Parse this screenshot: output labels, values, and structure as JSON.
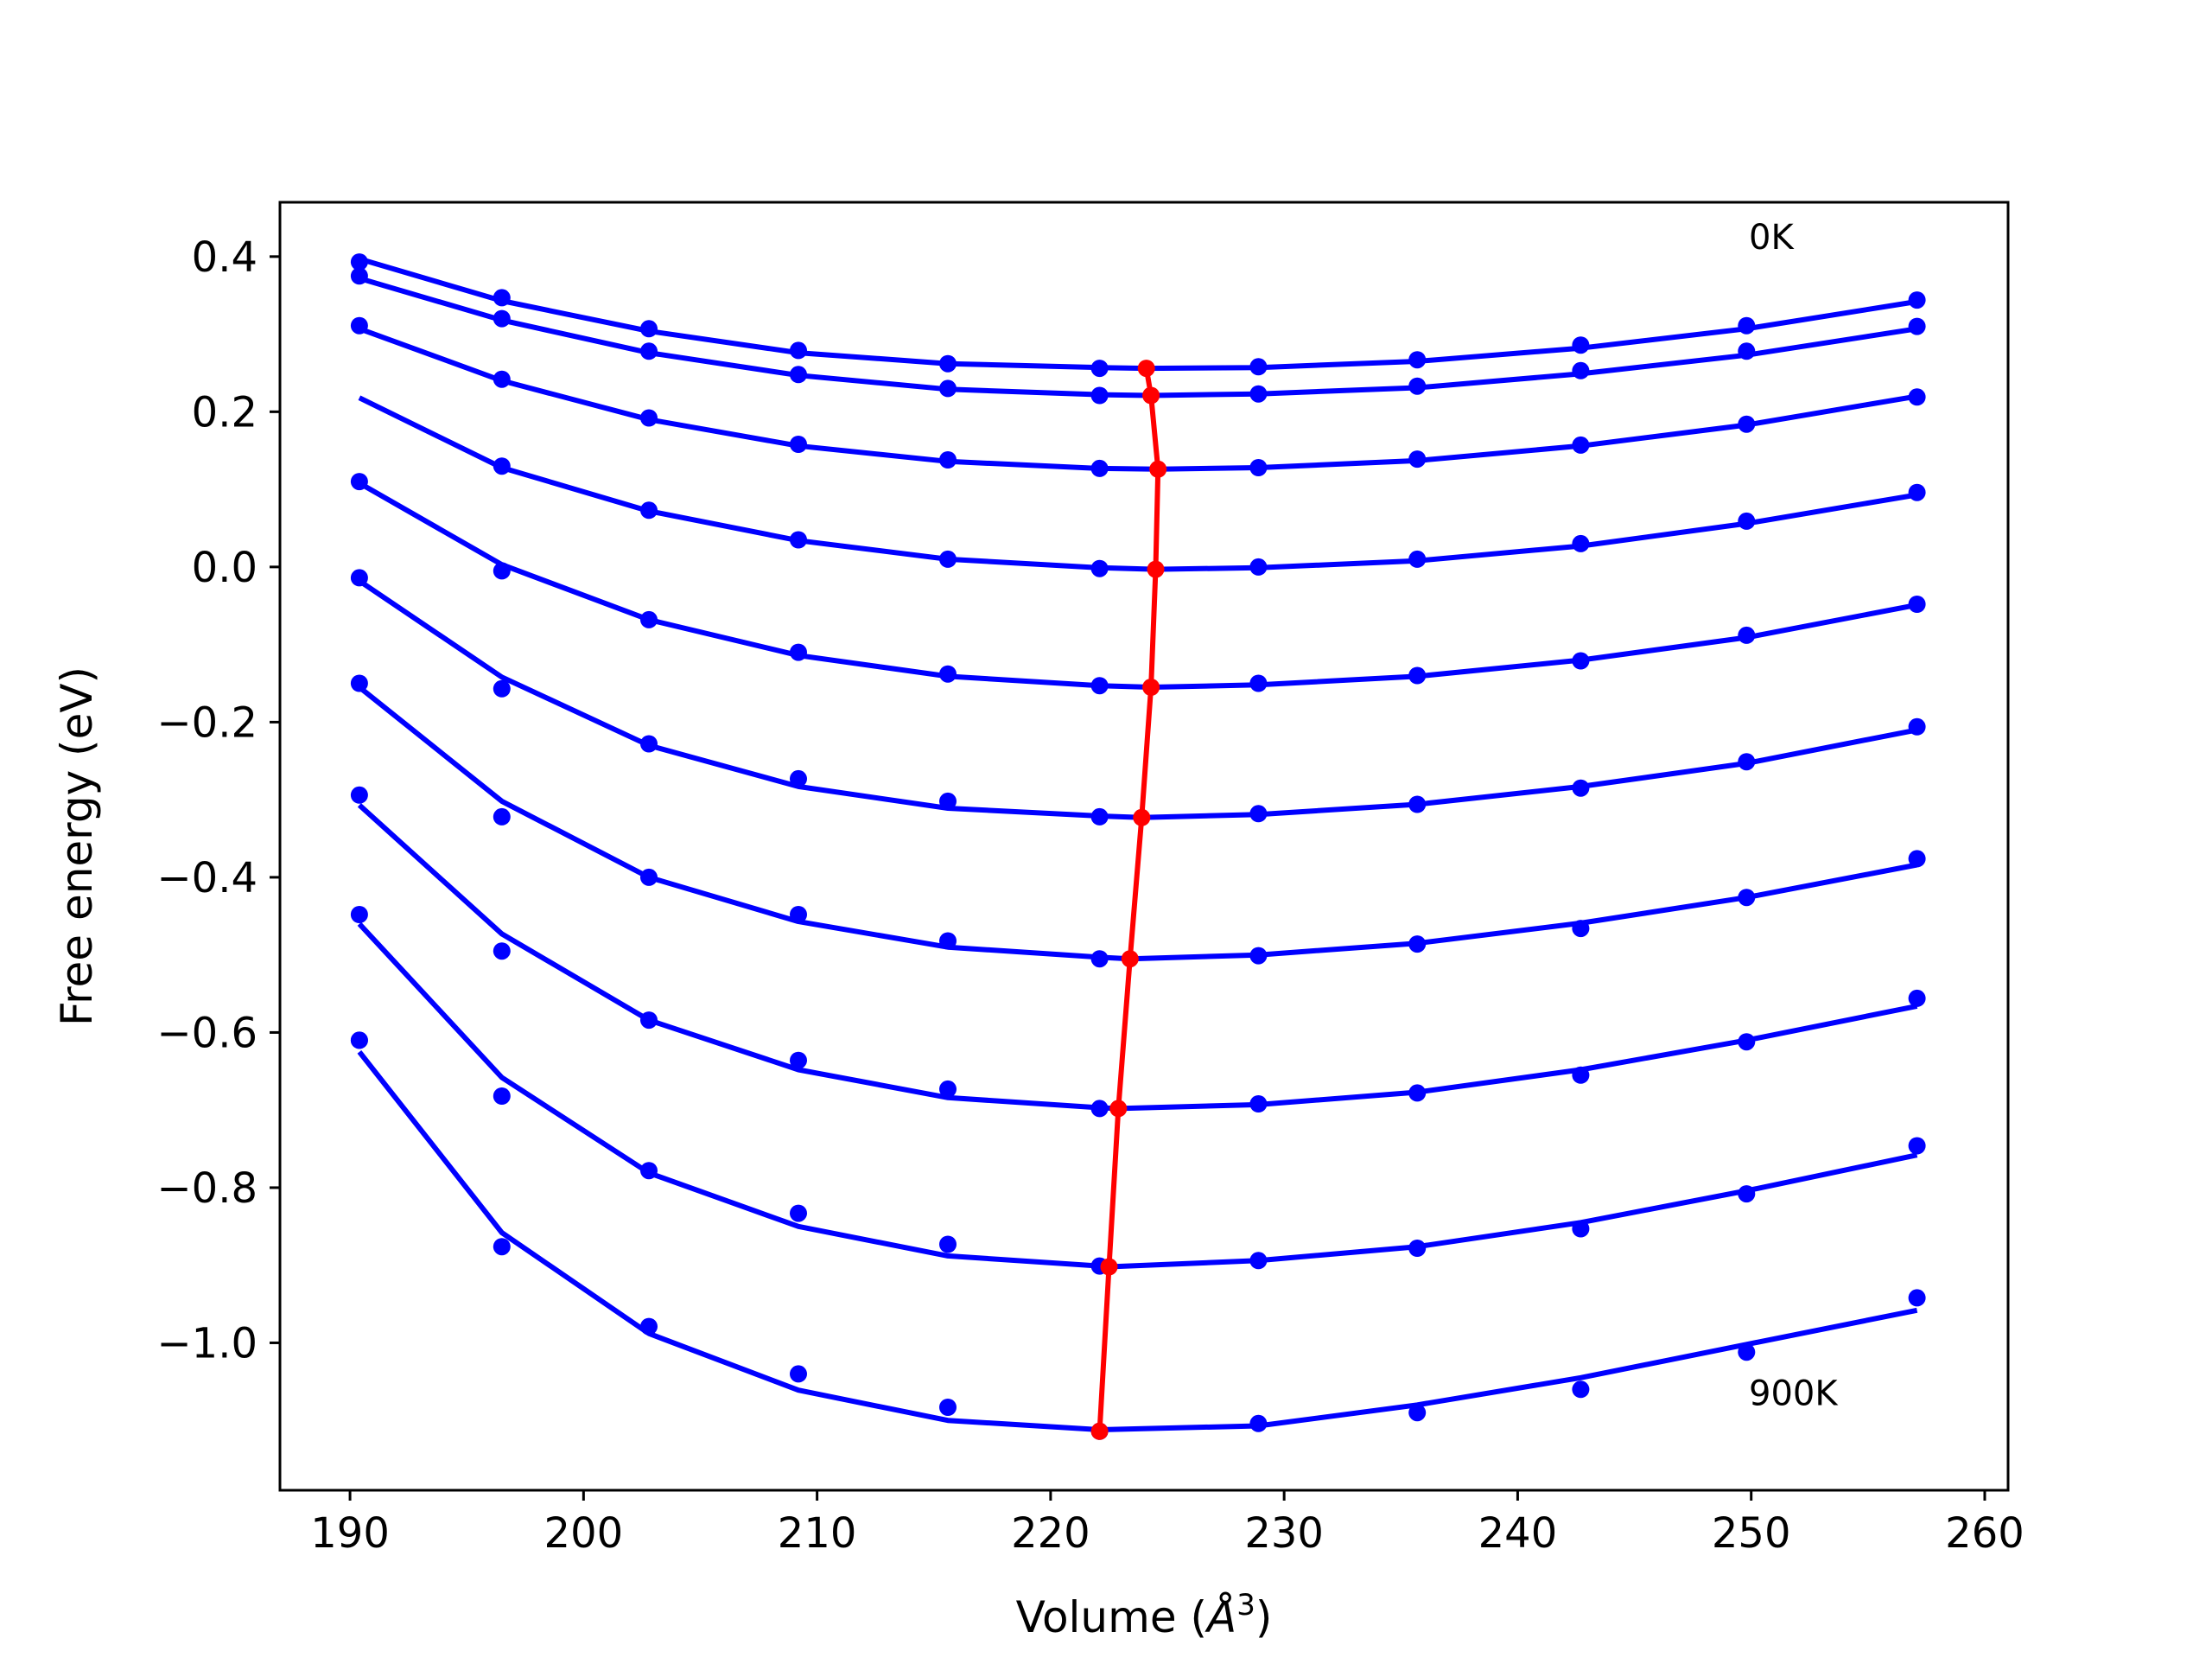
{
  "chart_data": {
    "type": "line",
    "title": "",
    "xlabel": "Volume (",
    "xlabel_symbol": "Å",
    "xlabel_exponent": "3",
    "xlabel_close": ")",
    "ylabel": "Free energy (eV)",
    "xlim": [
      187,
      261
    ],
    "ylim": [
      -1.19,
      0.47
    ],
    "xticks": [
      190,
      200,
      210,
      220,
      230,
      240,
      250,
      260
    ],
    "xtick_labels": [
      "190",
      "200",
      "210",
      "220",
      "230",
      "240",
      "250",
      "260"
    ],
    "yticks": [
      0.4,
      0.2,
      0.0,
      -0.2,
      -0.4,
      -0.6,
      -0.8,
      -1.0
    ],
    "ytick_labels": [
      "0.4",
      "0.2",
      "0.0",
      "−0.2",
      "−0.4",
      "−0.6",
      "−0.8",
      "−1.0"
    ],
    "grid": false,
    "colors": {
      "data": "#0000ff",
      "minima": "#ff0000",
      "frame": "#000000"
    },
    "annotations": [
      {
        "text": "0K",
        "x": 249.9,
        "y": 0.41
      },
      {
        "text": "900K",
        "x": 249.9,
        "y": -1.08
      }
    ],
    "x": [
      190.4,
      196.5,
      202.8,
      209.2,
      215.6,
      222.1,
      228.9,
      235.7,
      242.7,
      249.8,
      257.1
    ],
    "series": [
      {
        "points": [
          0.393,
          0.347,
          0.307,
          0.279,
          0.262,
          0.256,
          0.258,
          0.267,
          0.286,
          0.311,
          0.344
        ],
        "fit": {
          "x": [
            190.4,
            196.5,
            202.8,
            209.2,
            215.6,
            222.1,
            224.1,
            228.9,
            235.7,
            242.7,
            249.8,
            257.1
          ],
          "y": [
            0.397,
            0.343,
            0.304,
            0.276,
            0.262,
            0.257,
            0.256,
            0.257,
            0.265,
            0.282,
            0.307,
            0.342
          ]
        }
      },
      {
        "points": [
          0.375,
          0.32,
          0.278,
          0.248,
          0.23,
          0.221,
          0.223,
          0.233,
          0.253,
          0.278,
          0.31
        ],
        "fit": {
          "x": [
            190.4,
            196.5,
            202.8,
            209.2,
            215.6,
            222.1,
            224.3,
            228.9,
            235.7,
            242.7,
            249.8,
            257.1
          ],
          "y": [
            0.372,
            0.318,
            0.276,
            0.247,
            0.229,
            0.222,
            0.221,
            0.223,
            0.231,
            0.249,
            0.273,
            0.307
          ]
        }
      },
      {
        "points": [
          0.311,
          0.242,
          0.192,
          0.158,
          0.138,
          0.127,
          0.128,
          0.139,
          0.157,
          0.184,
          0.219
        ],
        "fit": {
          "x": [
            190.4,
            196.5,
            202.8,
            209.2,
            215.6,
            222.1,
            224.6,
            228.9,
            235.7,
            242.7,
            249.8,
            257.1
          ],
          "y": [
            0.307,
            0.24,
            0.19,
            0.156,
            0.136,
            0.127,
            0.126,
            0.128,
            0.137,
            0.156,
            0.183,
            0.22
          ]
        }
      },
      {
        "points": [
          0.11,
          0.13,
          0.073,
          0.035,
          0.01,
          -0.002,
          0.0,
          0.01,
          0.03,
          0.059,
          0.096
        ],
        "fit": {
          "x": [
            190.4,
            196.5,
            202.8,
            209.2,
            215.6,
            222.1,
            224.5,
            228.9,
            235.7,
            242.7,
            249.8,
            257.1
          ],
          "y": [
            0.218,
            0.128,
            0.072,
            0.034,
            0.01,
            -0.001,
            -0.003,
            -0.001,
            0.008,
            0.027,
            0.056,
            0.093
          ]
        }
      },
      {
        "points": [
          -0.014,
          -0.005,
          -0.068,
          -0.11,
          -0.138,
          -0.153,
          -0.15,
          -0.14,
          -0.121,
          -0.088,
          -0.048
        ],
        "fit": {
          "x": [
            190.4,
            196.5,
            202.8,
            209.2,
            215.6,
            222.1,
            224.3,
            228.9,
            235.7,
            242.7,
            249.8,
            257.1
          ],
          "y": [
            0.108,
            0.003,
            -0.068,
            -0.114,
            -0.141,
            -0.153,
            -0.155,
            -0.152,
            -0.141,
            -0.12,
            -0.091,
            -0.049
          ]
        }
      },
      {
        "points": [
          -0.15,
          -0.157,
          -0.228,
          -0.273,
          -0.302,
          -0.322,
          -0.318,
          -0.306,
          -0.285,
          -0.251,
          -0.206
        ],
        "fit": {
          "x": [
            190.4,
            196.5,
            202.8,
            209.2,
            215.6,
            222.1,
            223.9,
            228.9,
            235.7,
            242.7,
            249.8,
            257.1
          ],
          "y": [
            -0.018,
            -0.142,
            -0.23,
            -0.283,
            -0.311,
            -0.321,
            -0.323,
            -0.319,
            -0.306,
            -0.283,
            -0.253,
            -0.21
          ]
        }
      },
      {
        "points": [
          -0.294,
          -0.322,
          -0.4,
          -0.448,
          -0.482,
          -0.505,
          -0.501,
          -0.486,
          -0.466,
          -0.426,
          -0.376
        ],
        "fit": {
          "x": [
            190.4,
            196.5,
            202.8,
            209.2,
            215.6,
            222.1,
            223.4,
            228.9,
            235.7,
            242.7,
            249.8,
            257.1
          ],
          "y": [
            -0.155,
            -0.302,
            -0.4,
            -0.457,
            -0.49,
            -0.503,
            -0.505,
            -0.5,
            -0.485,
            -0.459,
            -0.426,
            -0.384
          ]
        }
      },
      {
        "points": [
          -0.448,
          -0.495,
          -0.584,
          -0.636,
          -0.673,
          -0.698,
          -0.692,
          -0.678,
          -0.655,
          -0.612,
          -0.556
        ],
        "fit": {
          "x": [
            190.4,
            196.5,
            202.8,
            209.2,
            215.6,
            222.1,
            222.9,
            228.9,
            235.7,
            242.7,
            249.8,
            257.1
          ],
          "y": [
            -0.307,
            -0.473,
            -0.584,
            -0.648,
            -0.684,
            -0.697,
            -0.698,
            -0.693,
            -0.677,
            -0.648,
            -0.61,
            -0.566
          ]
        }
      },
      {
        "points": [
          -0.61,
          -0.682,
          -0.778,
          -0.833,
          -0.873,
          -0.901,
          -0.894,
          -0.878,
          -0.853,
          -0.808,
          -0.746
        ],
        "fit": {
          "x": [
            190.4,
            196.5,
            202.8,
            209.2,
            215.6,
            222.1,
            222.5,
            228.9,
            235.7,
            242.7,
            249.8,
            257.1
          ],
          "y": [
            -0.46,
            -0.658,
            -0.781,
            -0.85,
            -0.888,
            -0.901,
            -0.902,
            -0.894,
            -0.876,
            -0.845,
            -0.804,
            -0.758
          ]
        }
      },
      {
        "points": [
          -0.61,
          -0.876,
          -0.979,
          -1.04,
          -1.083,
          -1.114,
          -1.104,
          -1.09,
          -1.06,
          -1.012,
          -0.942
        ],
        "fit": {
          "x": [
            190.4,
            196.5,
            202.8,
            209.2,
            215.6,
            222.1,
            228.9,
            235.7,
            242.7,
            249.8,
            257.1
          ],
          "y": [
            -0.625,
            -0.858,
            -0.988,
            -1.061,
            -1.1,
            -1.112,
            -1.107,
            -1.08,
            -1.045,
            -1.002,
            -0.958
          ]
        }
      }
    ],
    "minima": {
      "x": [
        224.1,
        224.3,
        224.6,
        224.5,
        224.3,
        223.9,
        223.4,
        222.9,
        222.5,
        222.1
      ],
      "y": [
        0.256,
        0.221,
        0.126,
        -0.003,
        -0.155,
        -0.323,
        -0.505,
        -0.698,
        -0.902,
        -1.114
      ]
    }
  }
}
